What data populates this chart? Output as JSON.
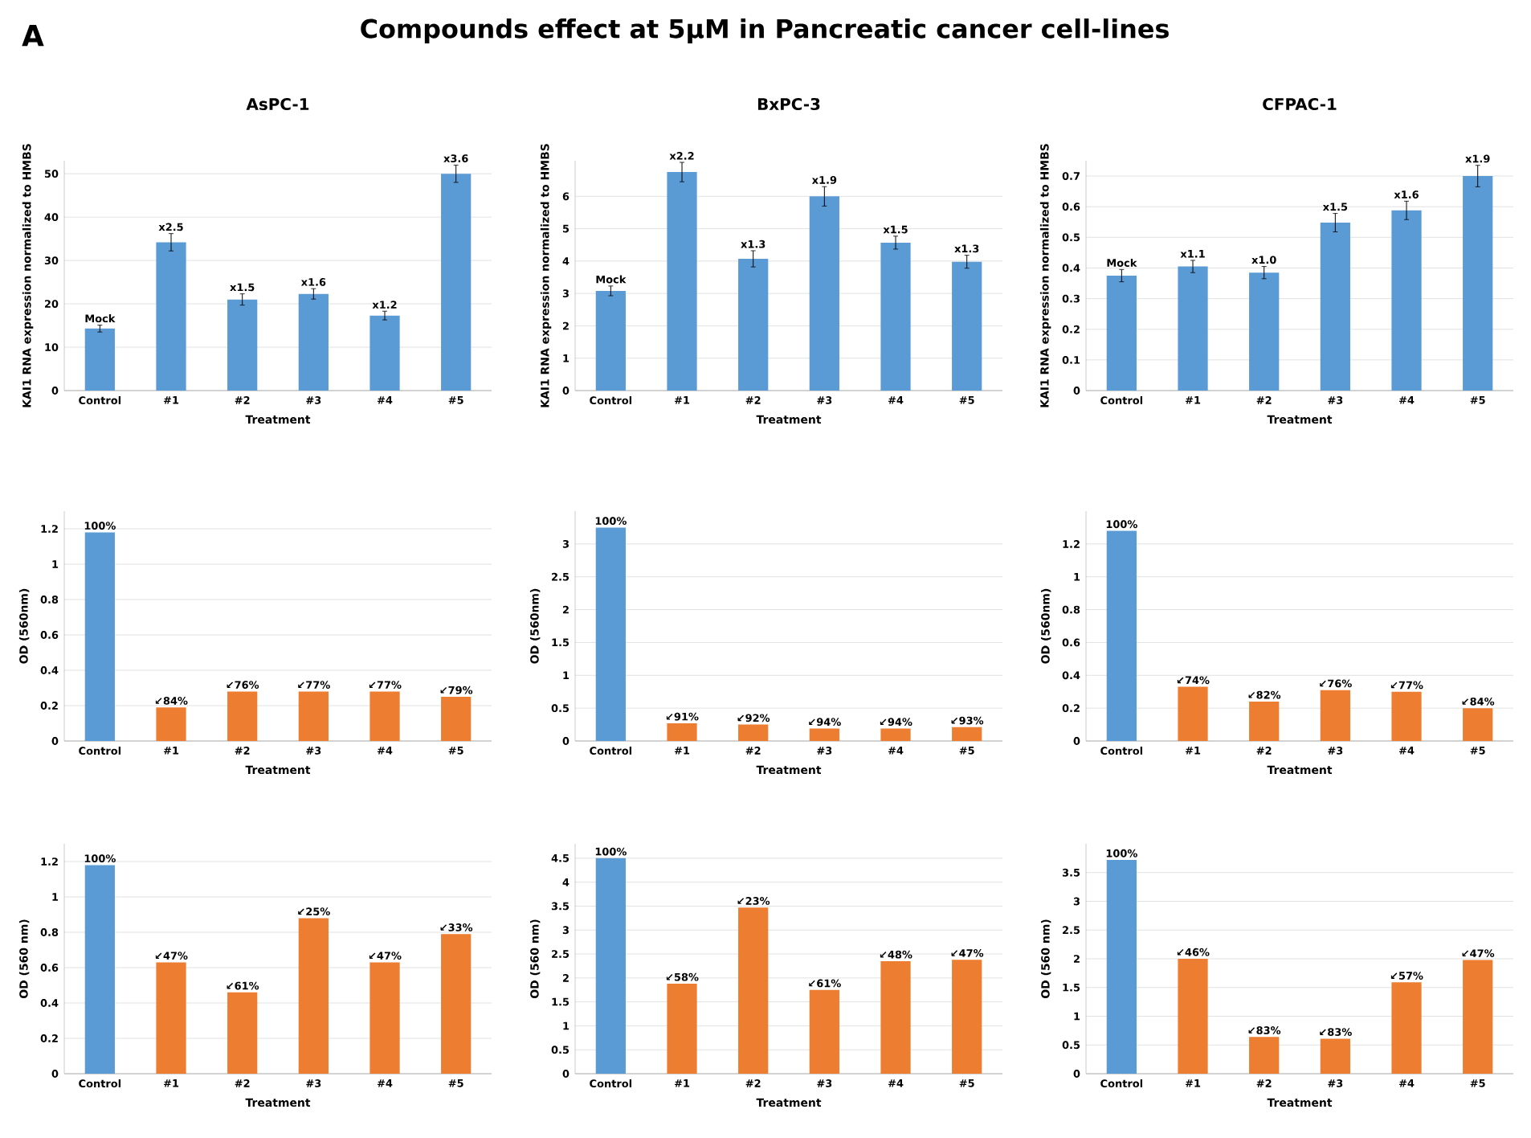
{
  "chart_data": [
    {
      "type": "other",
      "title": "Compounds effect at 5µM in Pancreatic cancer cell-lines",
      "annotations": [
        "A"
      ]
    },
    {
      "type": "bar",
      "title": "AsPC-1",
      "xlabel": "Treatment",
      "ylabel": "KAI1 RNA expression normalized to HMBS",
      "categories": [
        "Control",
        "#1",
        "#2",
        "#3",
        "#4",
        "#5"
      ],
      "values": [
        14.3,
        34.2,
        21,
        22.3,
        17.3,
        50
      ],
      "errors": [
        0.8,
        2,
        1.3,
        1.2,
        1,
        2
      ],
      "colors": [
        "#5b9bd5",
        "#5b9bd5",
        "#5b9bd5",
        "#5b9bd5",
        "#5b9bd5",
        "#5b9bd5"
      ],
      "value_labels": [
        "Mock",
        "x2.5",
        "x1.5",
        "x1.6",
        "x1.2",
        "x3.6"
      ],
      "ylim": [
        0,
        53
      ],
      "yticks": [
        0,
        10,
        20,
        30,
        40,
        50
      ],
      "grid": "y"
    },
    {
      "type": "bar",
      "title": "BxPC-3",
      "xlabel": "Treatment",
      "ylabel": "KAI1 RNA expression normalized to HMBS",
      "categories": [
        "Control",
        "#1",
        "#2",
        "#3",
        "#4",
        "#5"
      ],
      "values": [
        3.08,
        6.75,
        4.07,
        6.0,
        4.57,
        3.98
      ],
      "errors": [
        0.15,
        0.3,
        0.25,
        0.3,
        0.2,
        0.2
      ],
      "colors": [
        "#5b9bd5",
        "#5b9bd5",
        "#5b9bd5",
        "#5b9bd5",
        "#5b9bd5",
        "#5b9bd5"
      ],
      "value_labels": [
        "Mock",
        "x2.2",
        "x1.3",
        "x1.9",
        "x1.5",
        "x1.3"
      ],
      "ylim": [
        0,
        7.1
      ],
      "yticks": [
        0,
        1,
        2,
        3,
        4,
        5,
        6
      ],
      "grid": "y"
    },
    {
      "type": "bar",
      "title": "CFPAC-1",
      "xlabel": "Treatment",
      "ylabel": "KAI1 RNA expression normalized to HMBS",
      "categories": [
        "Control",
        "#1",
        "#2",
        "#3",
        "#4",
        "#5"
      ],
      "values": [
        0.375,
        0.405,
        0.385,
        0.548,
        0.588,
        0.7
      ],
      "errors": [
        0.02,
        0.02,
        0.02,
        0.03,
        0.03,
        0.035
      ],
      "colors": [
        "#5b9bd5",
        "#5b9bd5",
        "#5b9bd5",
        "#5b9bd5",
        "#5b9bd5",
        "#5b9bd5"
      ],
      "value_labels": [
        "Mock",
        "x1.1",
        "x1.0",
        "x1.5",
        "x1.6",
        "x1.9"
      ],
      "ylim": [
        0,
        0.75
      ],
      "yticks": [
        0,
        0.1,
        0.2,
        0.3,
        0.4,
        0.5,
        0.6,
        0.7
      ],
      "grid": "y"
    },
    {
      "type": "bar",
      "xlabel": "Treatment",
      "ylabel": "OD (560nm)",
      "categories": [
        "Control",
        "#1",
        "#2",
        "#3",
        "#4",
        "#5"
      ],
      "values": [
        1.18,
        0.19,
        0.28,
        0.28,
        0.28,
        0.25
      ],
      "colors": [
        "#5b9bd5",
        "#ed7d31",
        "#ed7d31",
        "#ed7d31",
        "#ed7d31",
        "#ed7d31"
      ],
      "annotations": [
        {
          "text": "100%",
          "x": "Control",
          "y": 1.18
        },
        {
          "text": "↙84%",
          "x": "#1",
          "y": 0.19
        },
        {
          "text": "↙76%",
          "x": "#2",
          "y": 0.28
        },
        {
          "text": "↙77%",
          "x": "#3",
          "y": 0.28
        },
        {
          "text": "↙77%",
          "x": "#4",
          "y": 0.28
        },
        {
          "text": "↙79%",
          "x": "#5",
          "y": 0.25
        }
      ],
      "ylim": [
        0,
        1.3
      ],
      "yticks": [
        0,
        0.2,
        0.4,
        0.6,
        0.8,
        1,
        1.2
      ],
      "grid": "y"
    },
    {
      "type": "bar",
      "xlabel": "Treatment",
      "ylabel": "OD (560nm)",
      "categories": [
        "Control",
        "#1",
        "#2",
        "#3",
        "#4",
        "#5"
      ],
      "values": [
        3.25,
        0.27,
        0.25,
        0.19,
        0.19,
        0.21
      ],
      "colors": [
        "#5b9bd5",
        "#ed7d31",
        "#ed7d31",
        "#ed7d31",
        "#ed7d31",
        "#ed7d31"
      ],
      "annotations": [
        {
          "text": "100%",
          "x": "Control",
          "y": 3.25
        },
        {
          "text": "↙91%",
          "x": "#1",
          "y": 0.27
        },
        {
          "text": "↙92%",
          "x": "#2",
          "y": 0.25
        },
        {
          "text": "↙94%",
          "x": "#3",
          "y": 0.19
        },
        {
          "text": "↙94%",
          "x": "#4",
          "y": 0.19
        },
        {
          "text": "↙93%",
          "x": "#5",
          "y": 0.21
        }
      ],
      "ylim": [
        0,
        3.5
      ],
      "yticks": [
        0,
        0.5,
        1,
        1.5,
        2,
        2.5,
        3
      ],
      "grid": "y"
    },
    {
      "type": "bar",
      "xlabel": "Treatment",
      "ylabel": "OD (560nm)",
      "categories": [
        "Control",
        "#1",
        "#2",
        "#3",
        "#4",
        "#5"
      ],
      "values": [
        1.28,
        0.33,
        0.24,
        0.31,
        0.3,
        0.2
      ],
      "colors": [
        "#5b9bd5",
        "#ed7d31",
        "#ed7d31",
        "#ed7d31",
        "#ed7d31",
        "#ed7d31"
      ],
      "annotations": [
        {
          "text": "100%",
          "x": "Control",
          "y": 1.28
        },
        {
          "text": "↙74%",
          "x": "#1",
          "y": 0.33
        },
        {
          "text": "↙82%",
          "x": "#2",
          "y": 0.24
        },
        {
          "text": "↙76%",
          "x": "#3",
          "y": 0.31
        },
        {
          "text": "↙77%",
          "x": "#4",
          "y": 0.3
        },
        {
          "text": "↙84%",
          "x": "#5",
          "y": 0.2
        }
      ],
      "ylim": [
        0,
        1.4
      ],
      "yticks": [
        0,
        0.2,
        0.4,
        0.6,
        0.8,
        1,
        1.2
      ],
      "grid": "y"
    },
    {
      "type": "bar",
      "xlabel": "Treatment",
      "ylabel": "OD (560 nm)",
      "categories": [
        "Control",
        "#1",
        "#2",
        "#3",
        "#4",
        "#5"
      ],
      "values": [
        1.18,
        0.63,
        0.46,
        0.88,
        0.63,
        0.79
      ],
      "colors": [
        "#5b9bd5",
        "#ed7d31",
        "#ed7d31",
        "#ed7d31",
        "#ed7d31",
        "#ed7d31"
      ],
      "annotations": [
        {
          "text": "100%",
          "x": "Control",
          "y": 1.18
        },
        {
          "text": "↙47%",
          "x": "#1",
          "y": 0.63
        },
        {
          "text": "↙61%",
          "x": "#2",
          "y": 0.46
        },
        {
          "text": "↙25%",
          "x": "#3",
          "y": 0.88
        },
        {
          "text": "↙47%",
          "x": "#4",
          "y": 0.63
        },
        {
          "text": "↙33%",
          "x": "#5",
          "y": 0.79
        }
      ],
      "ylim": [
        0,
        1.3
      ],
      "yticks": [
        0,
        0.2,
        0.4,
        0.6,
        0.8,
        1,
        1.2
      ],
      "grid": "y"
    },
    {
      "type": "bar",
      "xlabel": "Treatment",
      "ylabel": "OD (560 nm)",
      "categories": [
        "Control",
        "#1",
        "#2",
        "#3",
        "#4",
        "#5"
      ],
      "values": [
        4.5,
        1.88,
        3.47,
        1.75,
        2.35,
        2.38
      ],
      "colors": [
        "#5b9bd5",
        "#ed7d31",
        "#ed7d31",
        "#ed7d31",
        "#ed7d31",
        "#ed7d31"
      ],
      "annotations": [
        {
          "text": "100%",
          "x": "Control",
          "y": 4.5
        },
        {
          "text": "↙58%",
          "x": "#1",
          "y": 1.88
        },
        {
          "text": "↙23%",
          "x": "#2",
          "y": 3.47
        },
        {
          "text": "↙61%",
          "x": "#3",
          "y": 1.75
        },
        {
          "text": "↙48%",
          "x": "#4",
          "y": 2.35
        },
        {
          "text": "↙47%",
          "x": "#5",
          "y": 2.38
        }
      ],
      "ylim": [
        0,
        4.8
      ],
      "yticks": [
        0,
        0.5,
        1,
        1.5,
        2,
        2.5,
        3,
        3.5,
        4,
        4.5
      ],
      "grid": "y"
    },
    {
      "type": "bar",
      "xlabel": "Treatment",
      "ylabel": "OD (560 nm)",
      "categories": [
        "Control",
        "#1",
        "#2",
        "#3",
        "#4",
        "#5"
      ],
      "values": [
        3.72,
        2.0,
        0.64,
        0.61,
        1.59,
        1.98
      ],
      "colors": [
        "#5b9bd5",
        "#ed7d31",
        "#ed7d31",
        "#ed7d31",
        "#ed7d31",
        "#ed7d31"
      ],
      "annotations": [
        {
          "text": "100%",
          "x": "Control",
          "y": 3.72
        },
        {
          "text": "↙46%",
          "x": "#1",
          "y": 2.0
        },
        {
          "text": "↙83%",
          "x": "#2",
          "y": 0.64
        },
        {
          "text": "↙83%",
          "x": "#3",
          "y": 0.61
        },
        {
          "text": "↙57%",
          "x": "#4",
          "y": 1.59
        },
        {
          "text": "↙47%",
          "x": "#5",
          "y": 1.98
        }
      ],
      "ylim": [
        0,
        4
      ],
      "yticks": [
        0,
        0.5,
        1,
        1.5,
        2,
        2.5,
        3,
        3.5
      ],
      "grid": "y"
    }
  ]
}
